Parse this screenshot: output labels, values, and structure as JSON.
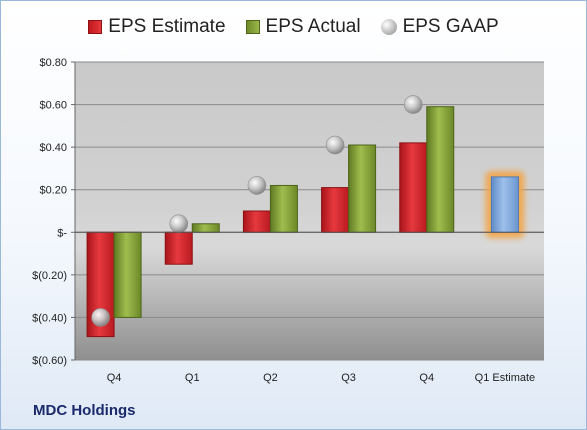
{
  "company": "MDC Holdings",
  "legend": {
    "estimate": "EPS Estimate",
    "actual": "EPS Actual",
    "gaap": "EPS GAAP"
  },
  "colors": {
    "estimate": "#d2242a",
    "actual": "#86a23a",
    "gaap": "#b8b8b8",
    "forecast": "#7fa8d8",
    "forecast_glow": "#f5a340"
  },
  "chart_data": {
    "type": "bar",
    "categories": [
      "Q4",
      "Q1",
      "Q2",
      "Q3",
      "Q4",
      "Q1 Estimate"
    ],
    "series": [
      {
        "name": "EPS Estimate",
        "values": [
          -0.49,
          -0.15,
          0.1,
          0.21,
          0.42,
          0.26
        ]
      },
      {
        "name": "EPS Actual",
        "values": [
          -0.4,
          0.04,
          0.22,
          0.41,
          0.59,
          null
        ]
      },
      {
        "name": "EPS GAAP",
        "values": [
          -0.4,
          0.04,
          0.22,
          0.41,
          0.6,
          null
        ]
      }
    ],
    "ylim": [
      -0.6,
      0.8
    ],
    "yticks": [
      0.8,
      0.6,
      0.4,
      0.2,
      0,
      -0.2,
      -0.4,
      -0.6
    ],
    "ytick_labels": [
      "$0.80",
      "$0.60",
      "$0.40",
      "$0.20",
      "$-",
      "$(0.20)",
      "$(0.40)",
      "$(0.60)"
    ],
    "grid": true,
    "legend_position": "top"
  }
}
